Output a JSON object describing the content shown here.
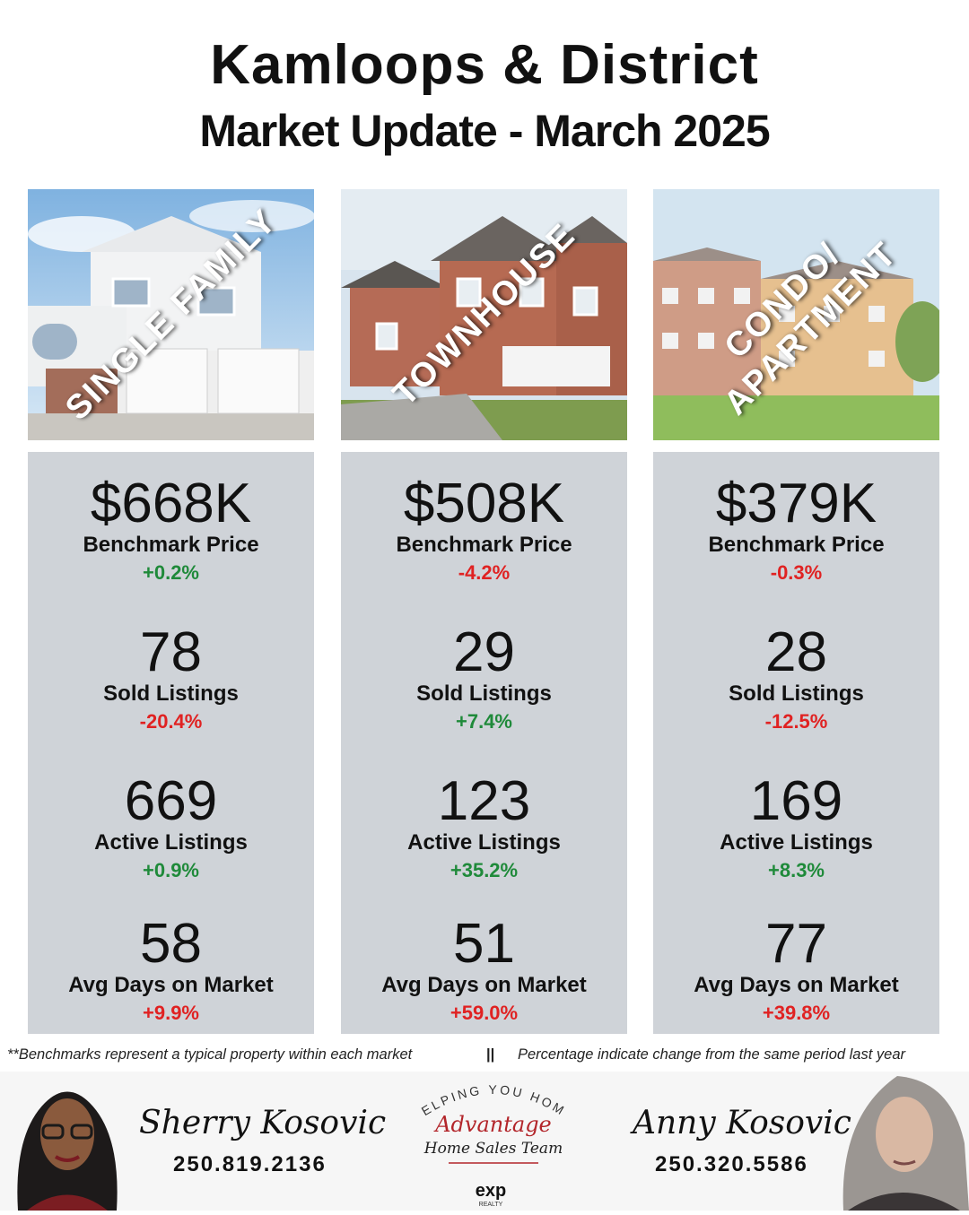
{
  "header": {
    "title": "Kamloops & District",
    "subtitle": "Market Update - March 2025"
  },
  "colors": {
    "positive": "#1f8a3a",
    "negative": "#e02222",
    "panel": "#cfd3d8"
  },
  "columns": [
    {
      "label": "SINGLE FAMILY",
      "benchmark": {
        "value": "$668K",
        "label": "Benchmark Price",
        "change": "+0.2%",
        "trend": "positive"
      },
      "sold": {
        "value": "78",
        "label": "Sold Listings",
        "change": "-20.4%",
        "trend": "negative"
      },
      "active": {
        "value": "669",
        "label": "Active Listings",
        "change": "+0.9%",
        "trend": "positive"
      },
      "days": {
        "value": "58",
        "label": "Avg Days on Market",
        "change": "+9.9%",
        "trend": "negative"
      }
    },
    {
      "label": "TOWNHOUSE",
      "benchmark": {
        "value": "$508K",
        "label": "Benchmark Price",
        "change": "-4.2%",
        "trend": "negative"
      },
      "sold": {
        "value": "29",
        "label": "Sold Listings",
        "change": "+7.4%",
        "trend": "positive"
      },
      "active": {
        "value": "123",
        "label": "Active Listings",
        "change": "+35.2%",
        "trend": "positive"
      },
      "days": {
        "value": "51",
        "label": "Avg Days on Market",
        "change": "+59.0%",
        "trend": "negative"
      }
    },
    {
      "label_line1": "CONDO/",
      "label_line2": "APARTMENT",
      "benchmark": {
        "value": "$379K",
        "label": "Benchmark Price",
        "change": "-0.3%",
        "trend": "negative"
      },
      "sold": {
        "value": "28",
        "label": "Sold Listings",
        "change": "-12.5%",
        "trend": "negative"
      },
      "active": {
        "value": "169",
        "label": "Active Listings",
        "change": "+8.3%",
        "trend": "positive"
      },
      "days": {
        "value": "77",
        "label": "Avg Days on Market",
        "change": "+39.8%",
        "trend": "negative"
      }
    }
  ],
  "notes": {
    "left": "**Benchmarks represent a typical property within each market",
    "separator": "||",
    "right": "Percentage indicate change from the same period last year"
  },
  "agents": [
    {
      "name": "Sherry Kosovic",
      "phone": "250.819.2136"
    },
    {
      "name": "Anny Kosovic",
      "phone": "250.320.5586"
    }
  ],
  "logo": {
    "arc_text": "HELPING YOU HOME",
    "line1": "Advantage",
    "line2": "Home Sales Team",
    "brokerage": "exp",
    "brokerage_sub": "REALTY"
  }
}
